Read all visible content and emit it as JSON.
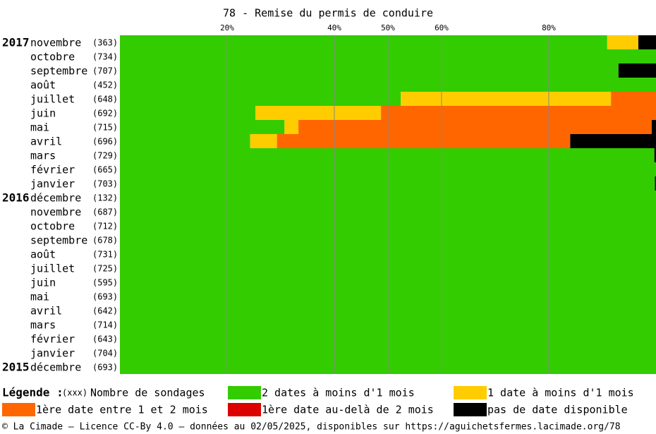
{
  "chart_data": {
    "type": "stacked-bar-horizontal",
    "title": "78 - Remise du permis de conduire",
    "categories": [
      "novembre",
      "octobre",
      "septembre",
      "août",
      "juillet",
      "juin",
      "mai",
      "avril",
      "mars",
      "février",
      "janvier",
      "décembre",
      "novembre",
      "octobre",
      "septembre",
      "août",
      "juillet",
      "juin",
      "mai",
      "avril",
      "mars",
      "février",
      "janvier",
      "décembre"
    ],
    "year_labels": [
      "2017",
      null,
      null,
      null,
      null,
      null,
      null,
      null,
      null,
      null,
      null,
      "2016",
      null,
      null,
      null,
      null,
      null,
      null,
      null,
      null,
      null,
      null,
      null,
      "2015"
    ],
    "count_labels": [
      "(363)",
      "(734)",
      "(707)",
      "(452)",
      "(648)",
      "(692)",
      "(715)",
      "(696)",
      "(729)",
      "(665)",
      "(703)",
      "(132)",
      "(687)",
      "(712)",
      "(678)",
      "(731)",
      "(725)",
      "(595)",
      "(693)",
      "(642)",
      "(714)",
      "(643)",
      "(704)",
      "(693)"
    ],
    "series": [
      {
        "name": "2 dates à moins d'1 mois",
        "color": "#33cc00",
        "values": [
          90.9,
          100,
          93.0,
          100,
          52.4,
          25.3,
          30.7,
          24.3,
          99.7,
          100,
          99.8,
          100,
          100,
          100,
          100,
          100,
          100,
          100,
          100,
          100,
          100,
          100,
          100,
          100
        ]
      },
      {
        "name": "1 date à moins d'1 mois",
        "color": "#ffcc00",
        "values": [
          5.8,
          0,
          0,
          0,
          39.2,
          23.4,
          2.6,
          5.0,
          0,
          0,
          0,
          0,
          0,
          0,
          0,
          0,
          0,
          0,
          0,
          0,
          0,
          0,
          0,
          0
        ]
      },
      {
        "name": "1ère date entre 1 et 2 mois",
        "color": "#ff6600",
        "values": [
          0,
          0,
          0,
          0,
          8.4,
          51.3,
          65.9,
          54.7,
          0,
          0,
          0,
          0,
          0,
          0,
          0,
          0,
          0,
          0,
          0,
          0,
          0,
          0,
          0,
          0
        ]
      },
      {
        "name": "1ère date au-delà de 2 mois",
        "color": "#dd0000",
        "values": [
          0,
          0,
          0,
          0,
          0,
          0,
          0,
          0,
          0,
          0,
          0,
          0,
          0,
          0,
          0,
          0,
          0,
          0,
          0,
          0,
          0,
          0,
          0,
          0
        ]
      },
      {
        "name": "pas de date disponible",
        "color": "#000000",
        "values": [
          3.3,
          0,
          7.0,
          0,
          0,
          0,
          0.8,
          16.0,
          0.3,
          0,
          0.2,
          0,
          0,
          0,
          0,
          0,
          0,
          0,
          0,
          0,
          0,
          0,
          0,
          0
        ]
      }
    ],
    "xlim": [
      0,
      100
    ],
    "xticks": [
      {
        "value": 20,
        "label": "20%"
      },
      {
        "value": 40,
        "label": "40%"
      },
      {
        "value": 50,
        "label": "50%"
      },
      {
        "value": 60,
        "label": "60%"
      },
      {
        "value": 80,
        "label": "80%"
      }
    ],
    "grid": true,
    "legend_title": "Légende :",
    "legend_count_sample": "(xxx)",
    "legend_count_text": "Nombre de sondages"
  },
  "footer": "© La Cimade — Licence CC-By 4.0 — données au 02/05/2025, disponibles sur https://aguichetsfermes.lacimade.org/78"
}
